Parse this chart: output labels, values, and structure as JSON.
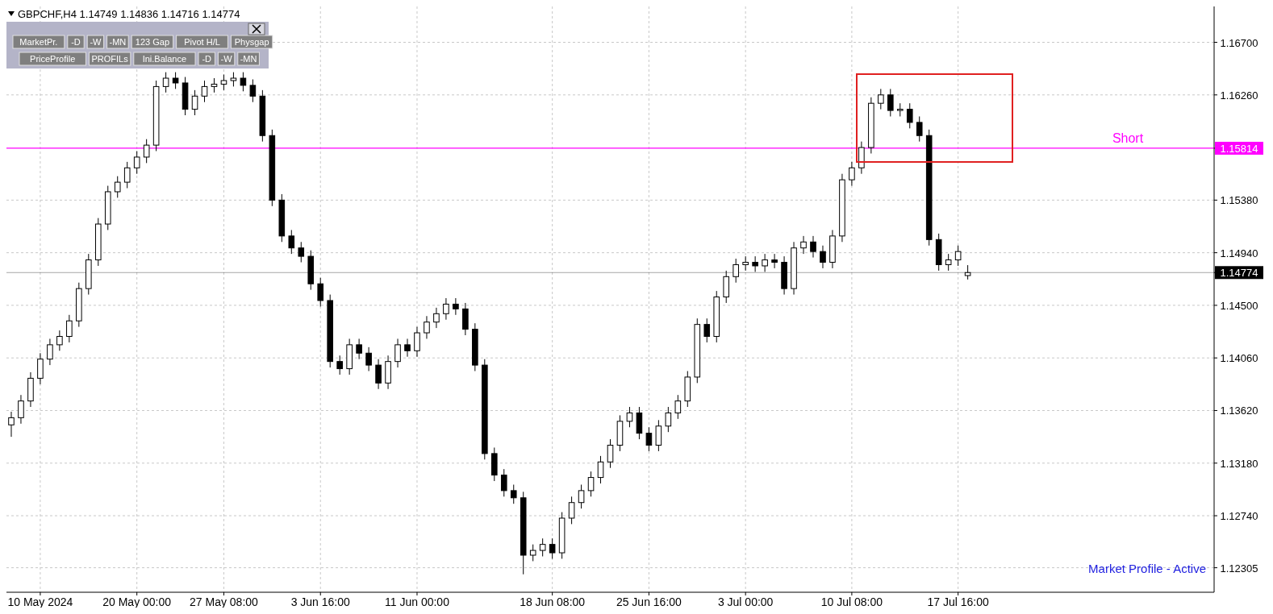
{
  "chart_data": {
    "type": "candlestick",
    "title": "GBPCHF,H4 1.14749 1.14836 1.14716 1.14774",
    "categories": [
      null,
      null,
      null,
      "10 May 2024",
      null,
      null,
      null,
      null,
      null,
      null,
      null,
      null,
      null,
      "20 May 00:00",
      null,
      null,
      null,
      null,
      null,
      null,
      null,
      null,
      "27 May 08:00",
      null,
      null,
      null,
      null,
      null,
      null,
      null,
      null,
      null,
      "3 Jun 16:00",
      null,
      null,
      null,
      null,
      null,
      null,
      null,
      null,
      null,
      "11 Jun 00:00",
      null,
      null,
      null,
      null,
      null,
      null,
      null,
      null,
      null,
      null,
      null,
      null,
      null,
      "18 Jun 08:00",
      null,
      null,
      null,
      null,
      null,
      null,
      null,
      null,
      null,
      "25 Jun 16:00",
      null,
      null,
      null,
      null,
      null,
      null,
      null,
      null,
      null,
      "3 Jul 00:00",
      null,
      null,
      null,
      null,
      null,
      null,
      null,
      null,
      null,
      null,
      "10 Jul 08:00",
      null,
      null,
      null,
      null,
      null,
      null,
      null,
      null,
      null,
      null,
      "17 Jul 16:00",
      null,
      null,
      null,
      null,
      null,
      null,
      null,
      null,
      null,
      null,
      null,
      null,
      null,
      null,
      null,
      null,
      null,
      null,
      null,
      null,
      null,
      null,
      null,
      null,
      null,
      null
    ],
    "ohlc": [
      [
        1.135,
        1.1361,
        1.134,
        1.1356
      ],
      [
        1.1356,
        1.1375,
        1.1351,
        1.137
      ],
      [
        1.137,
        1.1394,
        1.1365,
        1.1389
      ],
      [
        1.1389,
        1.141,
        1.1384,
        1.1405
      ],
      [
        1.1405,
        1.1422,
        1.14,
        1.1417
      ],
      [
        1.1417,
        1.1429,
        1.1412,
        1.1424
      ],
      [
        1.1424,
        1.1442,
        1.1419,
        1.1437
      ],
      [
        1.1437,
        1.1469,
        1.1432,
        1.1464
      ],
      [
        1.1464,
        1.1493,
        1.1459,
        1.1488
      ],
      [
        1.1488,
        1.1523,
        1.1483,
        1.1518
      ],
      [
        1.1518,
        1.155,
        1.1513,
        1.1545
      ],
      [
        1.1545,
        1.1558,
        1.154,
        1.1553
      ],
      [
        1.1553,
        1.157,
        1.1548,
        1.1565
      ],
      [
        1.1565,
        1.1579,
        1.156,
        1.1574
      ],
      [
        1.1574,
        1.1589,
        1.1569,
        1.1584
      ],
      [
        1.1584,
        1.1638,
        1.1579,
        1.1633
      ],
      [
        1.1633,
        1.1645,
        1.1628,
        1.164
      ],
      [
        1.164,
        1.1645,
        1.1631,
        1.1636
      ],
      [
        1.1636,
        1.1641,
        1.1609,
        1.1614
      ],
      [
        1.1614,
        1.163,
        1.1609,
        1.1625
      ],
      [
        1.1625,
        1.1638,
        1.162,
        1.1633
      ],
      [
        1.1633,
        1.164,
        1.1628,
        1.1635
      ],
      [
        1.1635,
        1.1643,
        1.163,
        1.1638
      ],
      [
        1.1638,
        1.1645,
        1.1633,
        1.164
      ],
      [
        1.164,
        1.1645,
        1.1629,
        1.1634
      ],
      [
        1.1634,
        1.1639,
        1.162,
        1.1625
      ],
      [
        1.1625,
        1.163,
        1.1587,
        1.1592
      ],
      [
        1.1592,
        1.1597,
        1.1533,
        1.1538
      ],
      [
        1.1538,
        1.1543,
        1.1503,
        1.1508
      ],
      [
        1.1508,
        1.1513,
        1.1493,
        1.1498
      ],
      [
        1.1498,
        1.1503,
        1.1486,
        1.1491
      ],
      [
        1.1491,
        1.1496,
        1.1463,
        1.1468
      ],
      [
        1.1468,
        1.1473,
        1.1449,
        1.1454
      ],
      [
        1.1454,
        1.1459,
        1.1398,
        1.1403
      ],
      [
        1.1403,
        1.1408,
        1.1392,
        1.1397
      ],
      [
        1.1397,
        1.1422,
        1.1392,
        1.1417
      ],
      [
        1.1417,
        1.1422,
        1.1405,
        1.141
      ],
      [
        1.141,
        1.1415,
        1.1395,
        1.14
      ],
      [
        1.14,
        1.1405,
        1.138,
        1.1385
      ],
      [
        1.1385,
        1.1408,
        1.138,
        1.1403
      ],
      [
        1.1403,
        1.1422,
        1.1398,
        1.1417
      ],
      [
        1.1417,
        1.1422,
        1.1407,
        1.1412
      ],
      [
        1.1412,
        1.1432,
        1.1407,
        1.1427
      ],
      [
        1.1427,
        1.1441,
        1.1422,
        1.1436
      ],
      [
        1.1436,
        1.1448,
        1.1431,
        1.1443
      ],
      [
        1.1443,
        1.1456,
        1.1438,
        1.1451
      ],
      [
        1.1451,
        1.1456,
        1.1442,
        1.1447
      ],
      [
        1.1447,
        1.1452,
        1.1425,
        1.143
      ],
      [
        1.143,
        1.1435,
        1.1395,
        1.14
      ],
      [
        1.14,
        1.1405,
        1.1321,
        1.1326
      ],
      [
        1.1326,
        1.1331,
        1.1303,
        1.1308
      ],
      [
        1.1308,
        1.1313,
        1.129,
        1.1295
      ],
      [
        1.1295,
        1.13,
        1.1284,
        1.1289
      ],
      [
        1.1289,
        1.1294,
        1.1225,
        1.1241
      ],
      [
        1.1241,
        1.125,
        1.1236,
        1.1245
      ],
      [
        1.1245,
        1.1255,
        1.124,
        1.125
      ],
      [
        1.125,
        1.1255,
        1.1238,
        1.1243
      ],
      [
        1.1243,
        1.1277,
        1.1238,
        1.1272
      ],
      [
        1.1272,
        1.129,
        1.1267,
        1.1285
      ],
      [
        1.1285,
        1.13,
        1.128,
        1.1295
      ],
      [
        1.1295,
        1.1311,
        1.129,
        1.1306
      ],
      [
        1.1306,
        1.1324,
        1.1301,
        1.1319
      ],
      [
        1.1319,
        1.1338,
        1.1314,
        1.1333
      ],
      [
        1.1333,
        1.1358,
        1.1328,
        1.1353
      ],
      [
        1.1353,
        1.1365,
        1.1348,
        1.136
      ],
      [
        1.136,
        1.1365,
        1.1338,
        1.1343
      ],
      [
        1.1343,
        1.1348,
        1.1328,
        1.1333
      ],
      [
        1.1333,
        1.1354,
        1.1328,
        1.1349
      ],
      [
        1.1349,
        1.1365,
        1.1344,
        1.136
      ],
      [
        1.136,
        1.1375,
        1.1355,
        1.137
      ],
      [
        1.137,
        1.1395,
        1.1365,
        1.139
      ],
      [
        1.139,
        1.1439,
        1.1385,
        1.1434
      ],
      [
        1.1434,
        1.1439,
        1.1419,
        1.1424
      ],
      [
        1.1424,
        1.1462,
        1.1419,
        1.1457
      ],
      [
        1.1457,
        1.1479,
        1.1452,
        1.1474
      ],
      [
        1.1474,
        1.1489,
        1.1469,
        1.1484
      ],
      [
        1.1484,
        1.1491,
        1.1479,
        1.1486
      ],
      [
        1.1486,
        1.1491,
        1.1478,
        1.1483
      ],
      [
        1.1483,
        1.1493,
        1.1478,
        1.1488
      ],
      [
        1.1488,
        1.1493,
        1.1481,
        1.1486
      ],
      [
        1.1486,
        1.1491,
        1.1459,
        1.1464
      ],
      [
        1.1464,
        1.1503,
        1.1459,
        1.1498
      ],
      [
        1.1498,
        1.1508,
        1.1493,
        1.1503
      ],
      [
        1.1503,
        1.1508,
        1.149,
        1.1495
      ],
      [
        1.1495,
        1.15,
        1.1481,
        1.1486
      ],
      [
        1.1486,
        1.1513,
        1.1481,
        1.1508
      ],
      [
        1.1508,
        1.156,
        1.1503,
        1.1555
      ],
      [
        1.1555,
        1.157,
        1.155,
        1.1565
      ],
      [
        1.1565,
        1.1587,
        1.156,
        1.1582
      ],
      [
        1.1582,
        1.1624,
        1.1577,
        1.1619
      ],
      [
        1.1619,
        1.1631,
        1.1614,
        1.1626
      ],
      [
        1.1626,
        1.1631,
        1.1608,
        1.1613
      ],
      [
        1.1613,
        1.1619,
        1.1608,
        1.1614
      ],
      [
        1.1614,
        1.1619,
        1.1598,
        1.1603
      ],
      [
        1.1603,
        1.1608,
        1.1587,
        1.1592
      ],
      [
        1.1592,
        1.1597,
        1.15,
        1.1505
      ],
      [
        1.1505,
        1.151,
        1.1479,
        1.1484
      ],
      [
        1.1484,
        1.1493,
        1.1479,
        1.1488
      ],
      [
        1.1488,
        1.15,
        1.1483,
        1.1495
      ],
      [
        1.14749,
        1.14836,
        1.14716,
        1.14774
      ],
      null,
      null,
      null,
      null,
      null,
      null,
      null,
      null,
      null,
      null,
      null,
      null,
      null,
      null,
      null,
      null,
      null,
      null,
      null,
      null,
      null,
      null,
      null,
      null,
      null
    ],
    "ylim": [
      1.121,
      1.17
    ],
    "yticks": [
      {
        "value": 1.167,
        "label": "1.16700"
      },
      {
        "value": 1.1626,
        "label": "1.16260"
      },
      1.15814,
      {
        "value": 1.1538,
        "label": "1.15380"
      },
      {
        "value": 1.1494,
        "label": "1.14940"
      },
      1.14774,
      {
        "value": 1.145,
        "label": "1.14500"
      },
      {
        "value": 1.1406,
        "label": "1.14060"
      },
      {
        "value": 1.1362,
        "label": "1.13620"
      },
      {
        "value": 1.1318,
        "label": "1.13180"
      },
      {
        "value": 1.1274,
        "label": "1.12740"
      },
      {
        "value": 1.12305,
        "label": "1.12305"
      }
    ],
    "grid": true,
    "ref_lines": [
      {
        "axis": "y",
        "value": 1.15814,
        "label": "Short",
        "color": "#ff00ff"
      },
      {
        "axis": "y",
        "value": 1.14774,
        "label": null,
        "color": "#000000"
      }
    ],
    "annotations": [
      "Market Profile - Active",
      "MarketPr.",
      "-D",
      "-W",
      "-MN",
      "123 Gap",
      "Pivot H/L",
      "Physgap",
      "PriceProfile",
      "PROFILs",
      "Ini.Balance",
      "-D",
      "-W",
      "-MN"
    ]
  }
}
